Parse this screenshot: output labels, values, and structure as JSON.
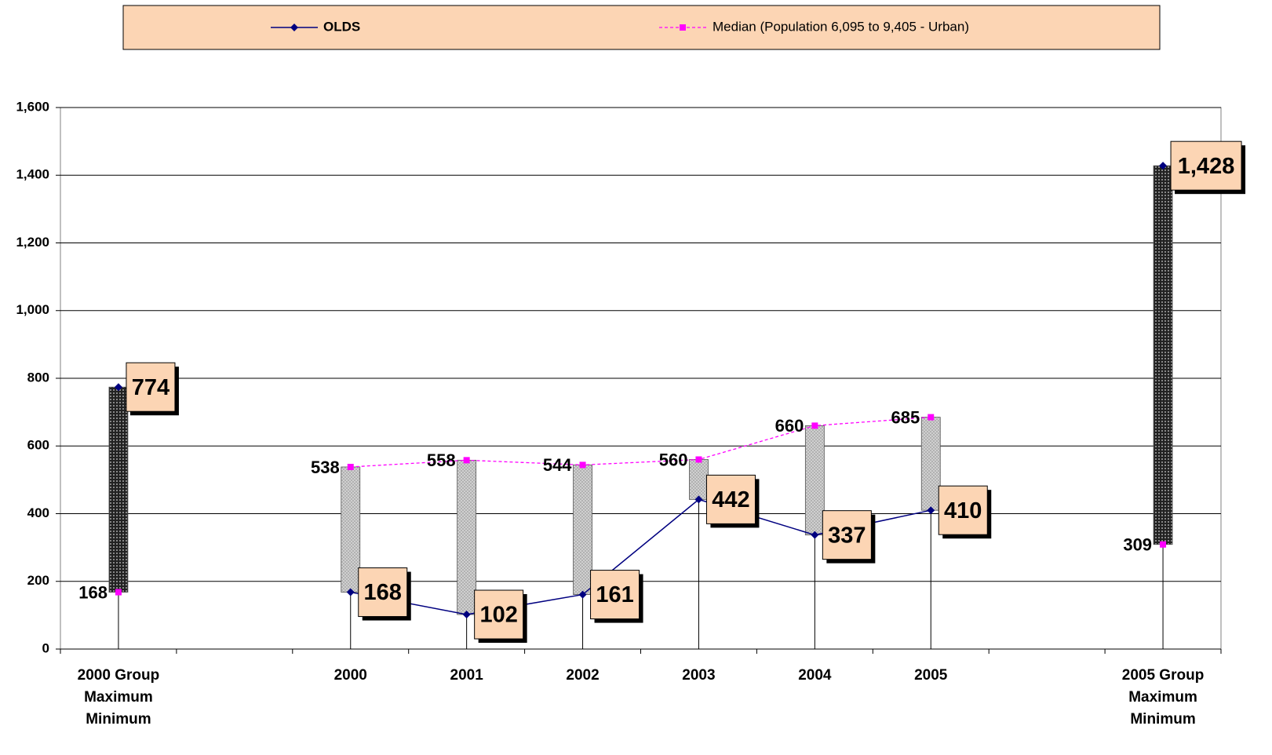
{
  "chart_data": {
    "type": "line",
    "categories": [
      "2000 Group\nMaximum\nMinimum",
      null,
      "2000",
      "2001",
      "2002",
      "2003",
      "2004",
      "2005",
      null,
      "2005 Group\nMaximum\nMinimum"
    ],
    "series": [
      {
        "name": "OLDS",
        "color": "#000080",
        "values": [
          774,
          null,
          168,
          102,
          161,
          442,
          337,
          410,
          null,
          1428
        ],
        "value_labels": [
          "774",
          null,
          "168",
          "102",
          "161",
          "442",
          "337",
          "410",
          null,
          "1,428"
        ]
      },
      {
        "name": "Median (Population 6,095 to 9,405 - Urban)",
        "color": "#ff00ff",
        "values": [
          168,
          null,
          538,
          558,
          544,
          560,
          660,
          685,
          null,
          309
        ]
      }
    ],
    "ylim": [
      0,
      1600
    ],
    "yticks": [
      0,
      200,
      400,
      600,
      800,
      {
        "value": 1000,
        "label": "1,000"
      },
      {
        "value": 1200,
        "label": "1,200"
      },
      {
        "value": 1400,
        "label": "1,400"
      },
      {
        "value": 1600,
        "label": "1,600"
      }
    ],
    "grid": true,
    "legend": "top"
  }
}
